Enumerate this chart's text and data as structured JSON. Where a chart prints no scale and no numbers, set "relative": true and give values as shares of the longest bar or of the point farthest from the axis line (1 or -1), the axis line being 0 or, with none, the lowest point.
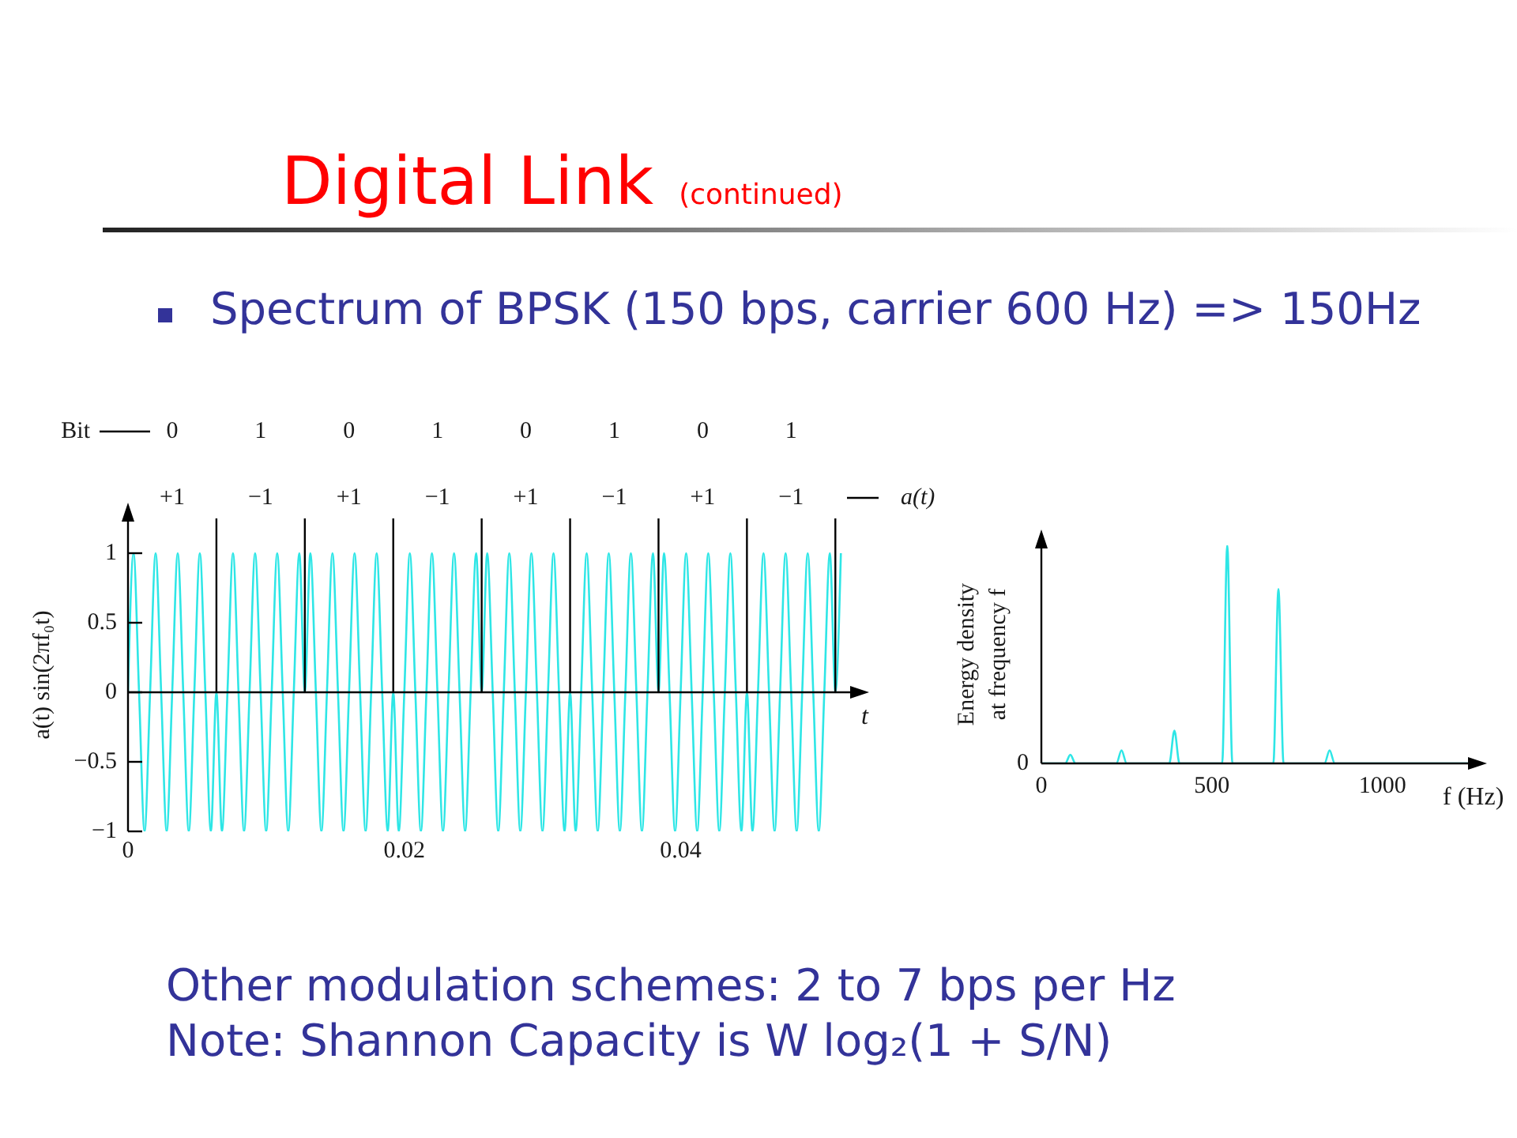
{
  "chart_data": [
    {
      "type": "line",
      "title": "Digital Link (continued)",
      "subtitle": "Spectrum of BPSK (150 bps, carrier 600 Hz) => 150Hz",
      "xlabel": "t",
      "ylabel": "a(t) sin(2πf₀t)",
      "color": "#2ee6e6",
      "x": [
        0,
        0.0004,
        0.0008,
        0.0012,
        0.0016,
        0.002,
        0.0024,
        0.0028,
        0.0032,
        0.0036,
        0.004,
        0.0044,
        0.0048,
        0.0052,
        0.0056,
        0.006,
        0.0064,
        0.0068,
        0.0072,
        0.0076,
        0.008,
        0.0084,
        0.0088,
        0.0092,
        0.0096,
        0.01,
        0.0104,
        0.0108,
        0.0112,
        0.0116,
        0.012,
        0.0124,
        0.0128,
        0.0132,
        0.0136,
        0.014,
        0.0144,
        0.0148,
        0.0152,
        0.0156,
        0.016,
        0.0164,
        0.0168,
        0.0172,
        0.0176,
        0.018,
        0.0184,
        0.0188,
        0.0192,
        0.0196,
        0.02,
        0.0204,
        0.0208,
        0.0212,
        0.0216,
        0.022,
        0.0224,
        0.0228,
        0.0232,
        0.0236,
        0.024,
        0.0244,
        0.0248,
        0.0252,
        0.0256,
        0.026,
        0.0264,
        0.0268,
        0.0272,
        0.0276,
        0.028,
        0.0284,
        0.0288,
        0.0292,
        0.0296,
        0.03,
        0.0304,
        0.0308,
        0.0312,
        0.0316,
        0.032,
        0.0324,
        0.0328,
        0.0332,
        0.0336,
        0.034,
        0.0344,
        0.0348,
        0.0352,
        0.0356,
        0.036,
        0.0364,
        0.0368,
        0.0372,
        0.0376,
        0.038,
        0.0384,
        0.0388,
        0.0392,
        0.0396,
        0.04,
        0.0404,
        0.0408,
        0.0412,
        0.0416,
        0.042,
        0.0424,
        0.0428,
        0.0432,
        0.0436,
        0.044,
        0.0444,
        0.0448,
        0.0452,
        0.0456,
        0.046,
        0.0464,
        0.0468,
        0.0472,
        0.0476,
        0.048,
        0.0484,
        0.0488,
        0.0492,
        0.0496,
        0.05,
        0.0504,
        0.0508,
        0.0512,
        0.0516
      ],
      "values": [
        0,
        1,
        0,
        -1,
        0,
        1,
        0,
        -1,
        0,
        1,
        0,
        -1,
        0,
        1,
        0,
        -1,
        0,
        -1,
        0,
        1,
        0,
        -1,
        0,
        1,
        0,
        -1,
        0,
        1,
        0,
        -1,
        0,
        1,
        0,
        1,
        0,
        -1,
        0,
        1,
        0,
        -1,
        0,
        1,
        0,
        -1,
        0,
        1,
        0,
        -1,
        0,
        -1,
        0,
        1,
        0,
        -1,
        0,
        1,
        0,
        -1,
        0,
        1,
        0,
        -1,
        0,
        1,
        0,
        1,
        0,
        -1,
        0,
        1,
        0,
        -1,
        0,
        1,
        0,
        -1,
        0,
        1,
        0,
        -1,
        0,
        -1,
        0,
        1,
        0,
        -1,
        0,
        1,
        0,
        -1,
        0,
        1,
        0,
        -1,
        0,
        1,
        0,
        1,
        0,
        -1,
        0,
        1,
        0,
        -1,
        0,
        1,
        0,
        -1,
        0,
        1,
        0,
        -1,
        0,
        -1,
        0,
        1,
        0,
        -1,
        0,
        1,
        0,
        -1,
        0,
        1,
        0,
        -1,
        0,
        1,
        0,
        1
      ],
      "xlim": [
        0,
        0.0525
      ],
      "xticks": [
        0,
        0.02,
        0.04
      ],
      "ylim": [
        -1,
        1.25
      ],
      "yticks": [
        -1,
        -0.5,
        0,
        0.5,
        1
      ],
      "ref_lines": [
        {
          "axis": "y",
          "value": 0
        },
        {
          "axis": "x",
          "value": 0.0064
        },
        {
          "axis": "x",
          "value": 0.0128
        },
        {
          "axis": "x",
          "value": 0.0192
        },
        {
          "axis": "x",
          "value": 0.0256
        },
        {
          "axis": "x",
          "value": 0.032
        },
        {
          "axis": "x",
          "value": 0.0384
        },
        {
          "axis": "x",
          "value": 0.0448
        },
        {
          "axis": "x",
          "value": 0.0512
        }
      ],
      "annotations": [
        "Bit",
        "0",
        "1",
        "0",
        "1",
        "0",
        "1",
        "0",
        "1",
        "+1",
        "−1",
        "+1",
        "−1",
        "+1",
        "−1",
        "+1",
        "−1",
        "a(t)",
        "Other modulation schemes: 2 to 7 bps per Hz",
        "Note: Shannon Capacity is W log₂(1 + S/N)"
      ]
    },
    {
      "type": "line",
      "xlabel": "f (Hz)",
      "ylabel": "Energy density at frequency f",
      "relative": true,
      "color": "#2ee6e6",
      "x": [
        0,
        70,
        85,
        100,
        220,
        235,
        250,
        375,
        390,
        405,
        530,
        545,
        560,
        680,
        695,
        710,
        830,
        845,
        860,
        1260
      ],
      "values": [
        0,
        0,
        0.04,
        0,
        0,
        0.06,
        0,
        0,
        0.15,
        0,
        0,
        1,
        0,
        0,
        0.8,
        0,
        0,
        0.06,
        0,
        0
      ],
      "xlim": [
        0,
        1260
      ],
      "xticks": [
        0,
        500,
        1000
      ],
      "annotations": [
        "0"
      ]
    }
  ]
}
